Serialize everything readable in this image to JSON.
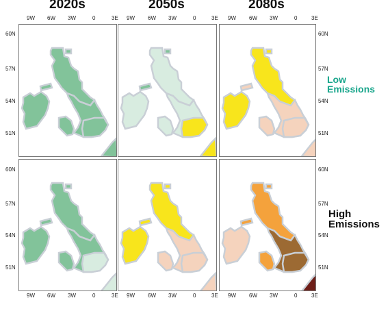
{
  "columns": [
    "2020s",
    "2050s",
    "2080s"
  ],
  "rows": [
    {
      "label_line1": "Low",
      "label_line2": "Emissions",
      "color": "#1aa68c"
    },
    {
      "label_line1": "High",
      "label_line2": "Emissions",
      "color": "#111111"
    }
  ],
  "x_ticks": [
    "9W",
    "6W",
    "3W",
    "0",
    "3E"
  ],
  "y_ticks": [
    "60N",
    "57N",
    "54N",
    "51N"
  ],
  "colors": {
    "outline": "#c9cfd6",
    "green": "#82c39a",
    "pale_green": "#d8ece0",
    "yellow": "#f8e51c",
    "peach": "#f5d3bd",
    "orange": "#f4a23c",
    "red": "#e8362c",
    "brown": "#9c6a33",
    "dark_red": "#6e1e18"
  },
  "panels": [
    {
      "row": 0,
      "col": 0,
      "fills": {
        "scotland": "green",
        "ni": "green",
        "england": "green",
        "wales": "green",
        "se": "green",
        "shetland": "green",
        "island": "green",
        "edge_strip": "green"
      }
    },
    {
      "row": 0,
      "col": 1,
      "fills": {
        "scotland": "pale_green",
        "ni": "pale_green",
        "england": "pale_green",
        "wales": "pale_green",
        "se": "yellow",
        "shetland": "green",
        "island": "green",
        "edge_strip": "yellow"
      }
    },
    {
      "row": 0,
      "col": 2,
      "fills": {
        "scotland": "yellow",
        "ni": "yellow",
        "england": "peach",
        "wales": "peach",
        "se": "peach",
        "shetland": "peach",
        "island": "yellow",
        "edge_strip": "peach"
      }
    },
    {
      "row": 1,
      "col": 0,
      "fills": {
        "scotland": "green",
        "ni": "green",
        "england": "green",
        "wales": "green",
        "se": "pale_green",
        "shetland": "green",
        "island": "green",
        "edge_strip": "pale_green"
      }
    },
    {
      "row": 1,
      "col": 1,
      "fills": {
        "scotland": "yellow",
        "ni": "yellow",
        "england": "peach",
        "wales": "peach",
        "se": "peach",
        "shetland": "yellow",
        "island": "yellow",
        "edge_strip": "peach"
      }
    },
    {
      "row": 1,
      "col": 2,
      "fills": {
        "scotland": "orange",
        "ni": "peach",
        "england": "brown",
        "wales": "orange",
        "se": "brown",
        "shetland": "orange",
        "island": "orange",
        "edge_strip": "dark_red"
      }
    }
  ]
}
